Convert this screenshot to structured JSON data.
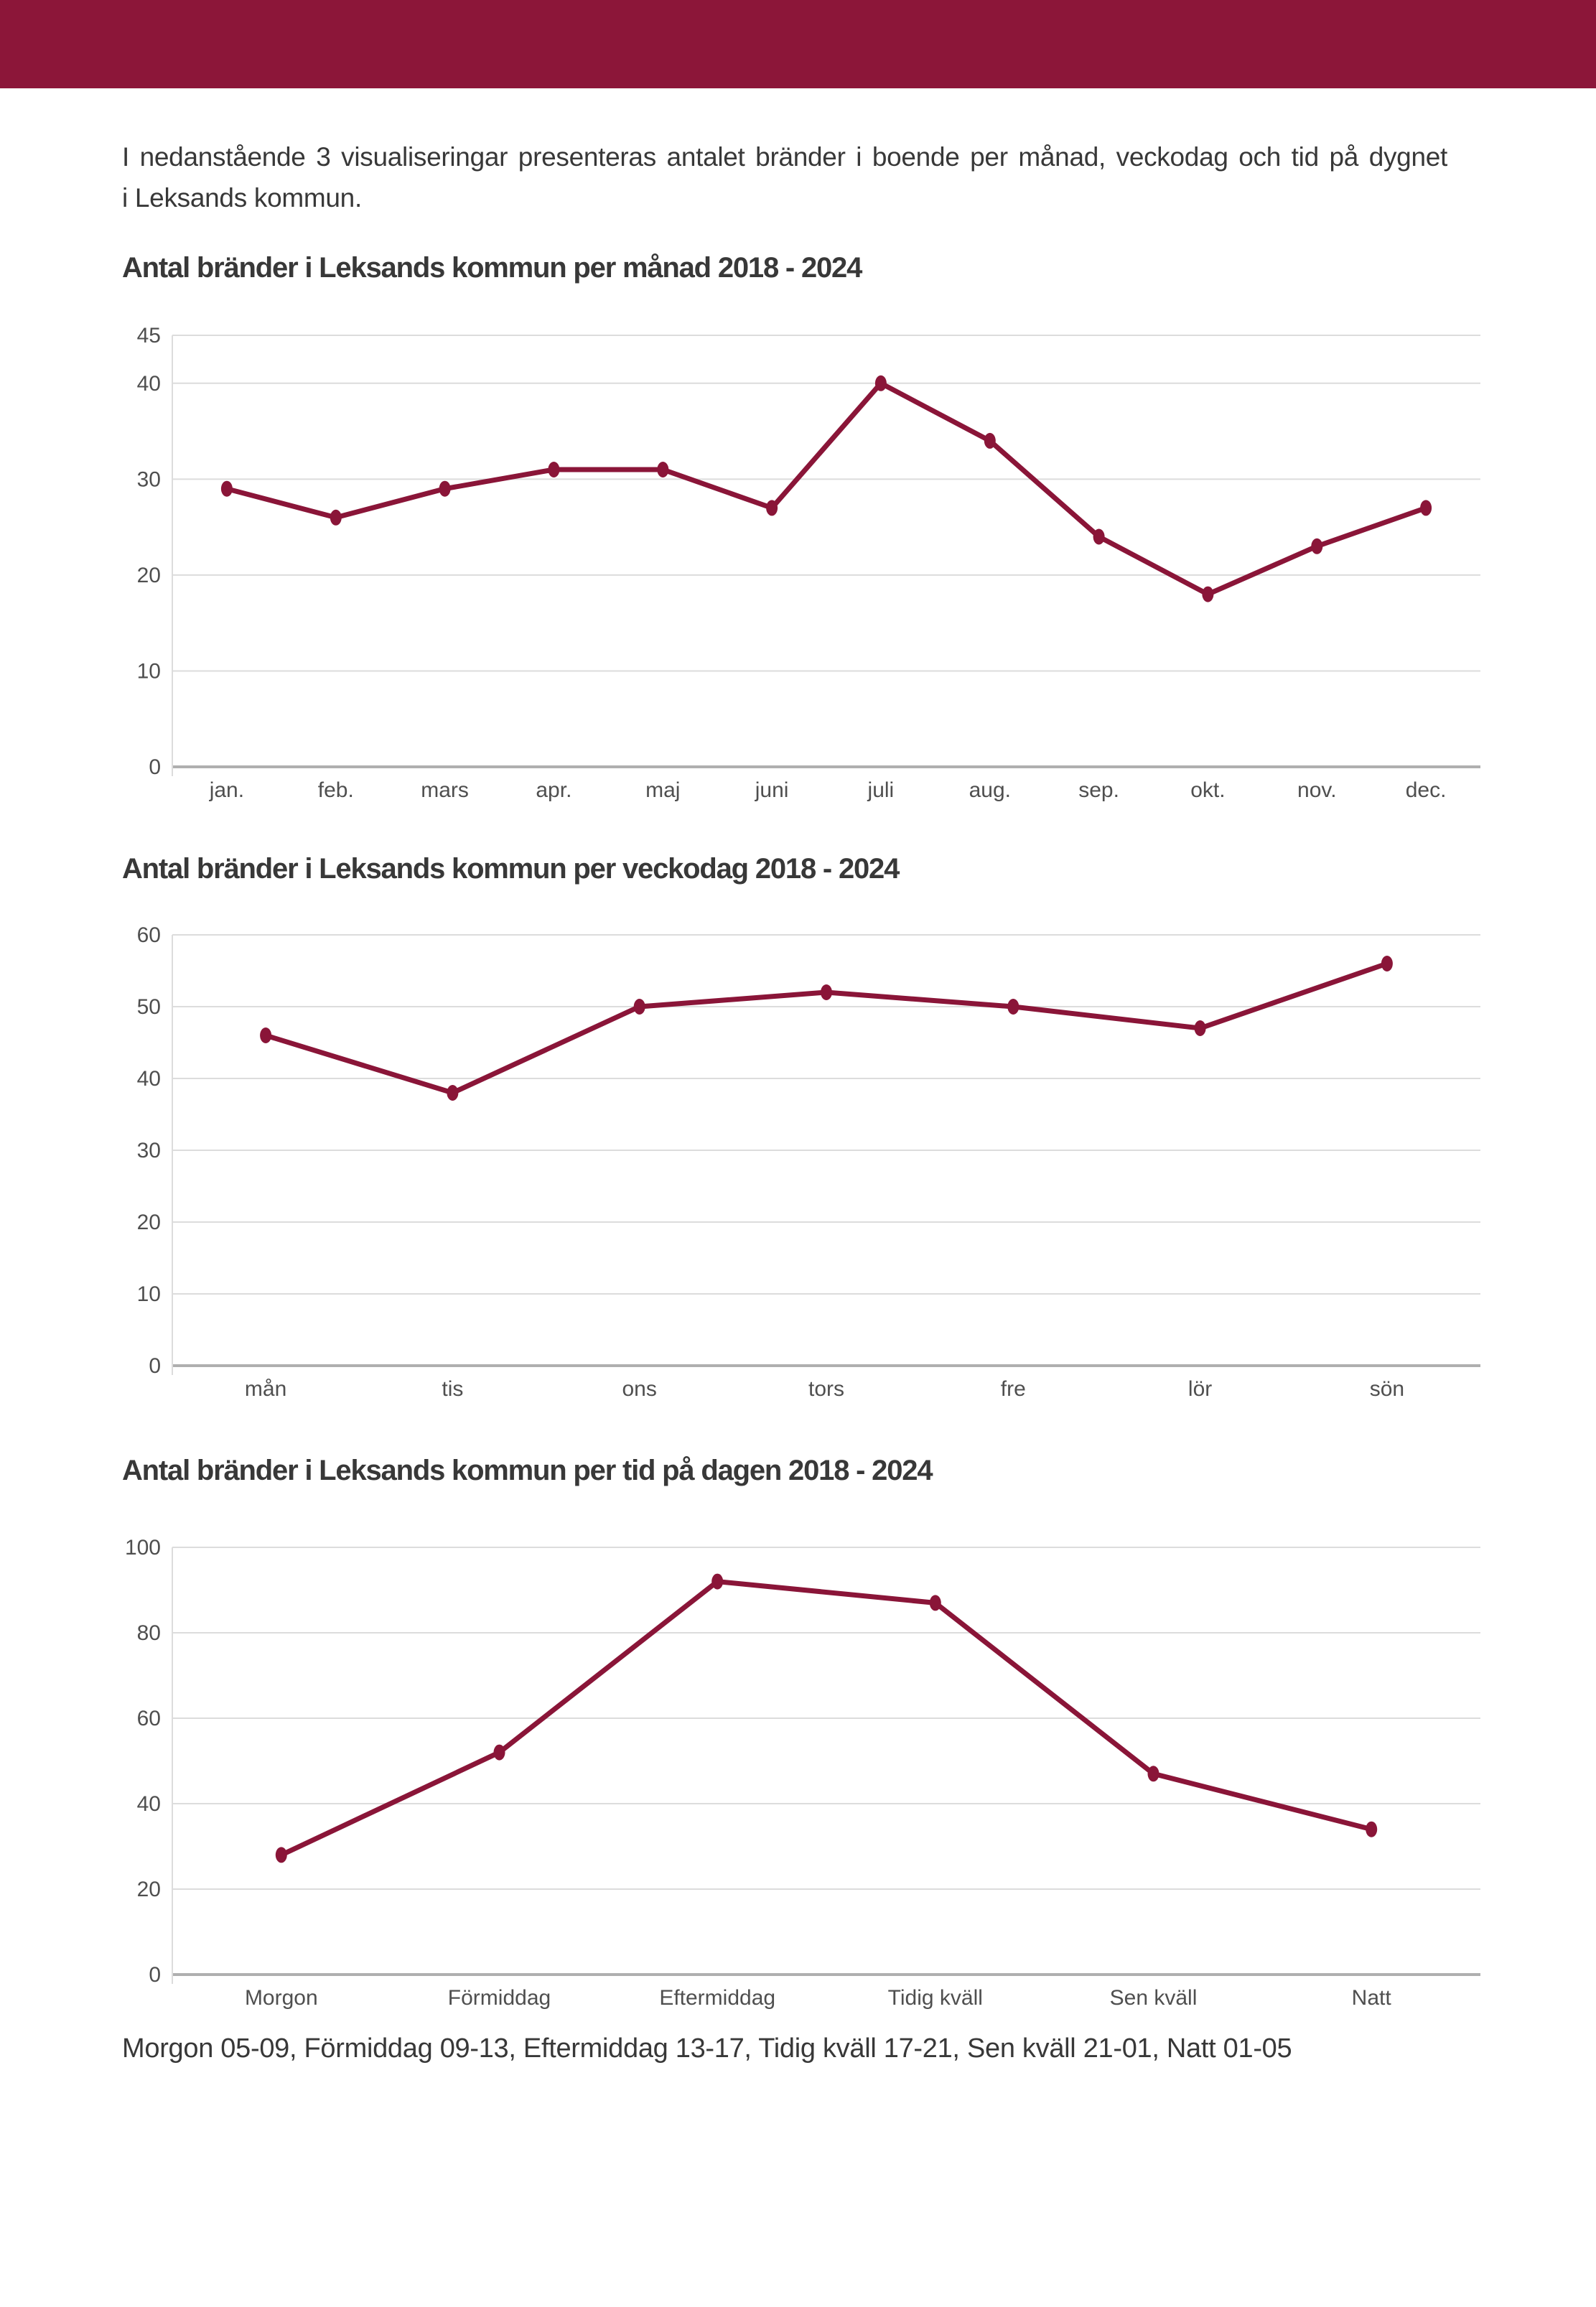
{
  "page": {
    "footer_text": "Morgon 05-09, Förmiddag 09-13, Eftermiddag 13-17, Tidig kväll 17-21, Sen kväll 21-01, Natt 01-05"
  },
  "intro": {
    "line1": "I nedanstående 3 visualiseringar presenteras antalet bränder i boende per månad, veckodag och tid på dygnet",
    "line2": "i Leksands kommun."
  },
  "colors": {
    "header_bar": "#8C1639",
    "series_line": "#8A1538",
    "gridline": "#DCDCDC",
    "zero_axis": "#AFAFAF",
    "axis_text": "#4F4F4F",
    "heading_text": "#383838"
  },
  "chart_data": [
    {
      "type": "line",
      "title": "Antal bränder i Leksands kommun per månad 2018 - 2024",
      "categories": [
        "jan.",
        "feb.",
        "mars",
        "apr.",
        "maj",
        "juni",
        "juli",
        "aug.",
        "sep.",
        "okt.",
        "nov.",
        "dec."
      ],
      "values": [
        29,
        26,
        29,
        31,
        31,
        27,
        40,
        34,
        24,
        18,
        23,
        27
      ],
      "yticks": [
        45,
        40,
        30,
        20,
        10,
        0
      ],
      "ylim": [
        0,
        45
      ],
      "grid": true,
      "legend": "none",
      "marker": "ellipse"
    },
    {
      "type": "line",
      "title": "Antal bränder i Leksands kommun per veckodag 2018 - 2024",
      "categories": [
        "mån",
        "tis",
        "ons",
        "tors",
        "fre",
        "lör",
        "sön"
      ],
      "values": [
        46,
        38,
        50,
        52,
        50,
        47,
        56
      ],
      "yticks": [
        60,
        50,
        40,
        30,
        20,
        10,
        0
      ],
      "ylim": [
        0,
        60
      ],
      "grid": true,
      "legend": "none",
      "marker": "ellipse"
    },
    {
      "type": "line",
      "title": "Antal bränder i Leksands kommun per tid på dagen 2018 - 2024",
      "categories": [
        "Morgon",
        "Förmiddag",
        "Eftermiddag",
        "Tidig kväll",
        "Sen kväll",
        "Natt"
      ],
      "values": [
        28,
        52,
        92,
        87,
        47,
        34
      ],
      "yticks": [
        100,
        80,
        60,
        40,
        20,
        0
      ],
      "ylim": [
        0,
        100
      ],
      "grid": true,
      "legend": "none",
      "marker": "ellipse"
    }
  ]
}
